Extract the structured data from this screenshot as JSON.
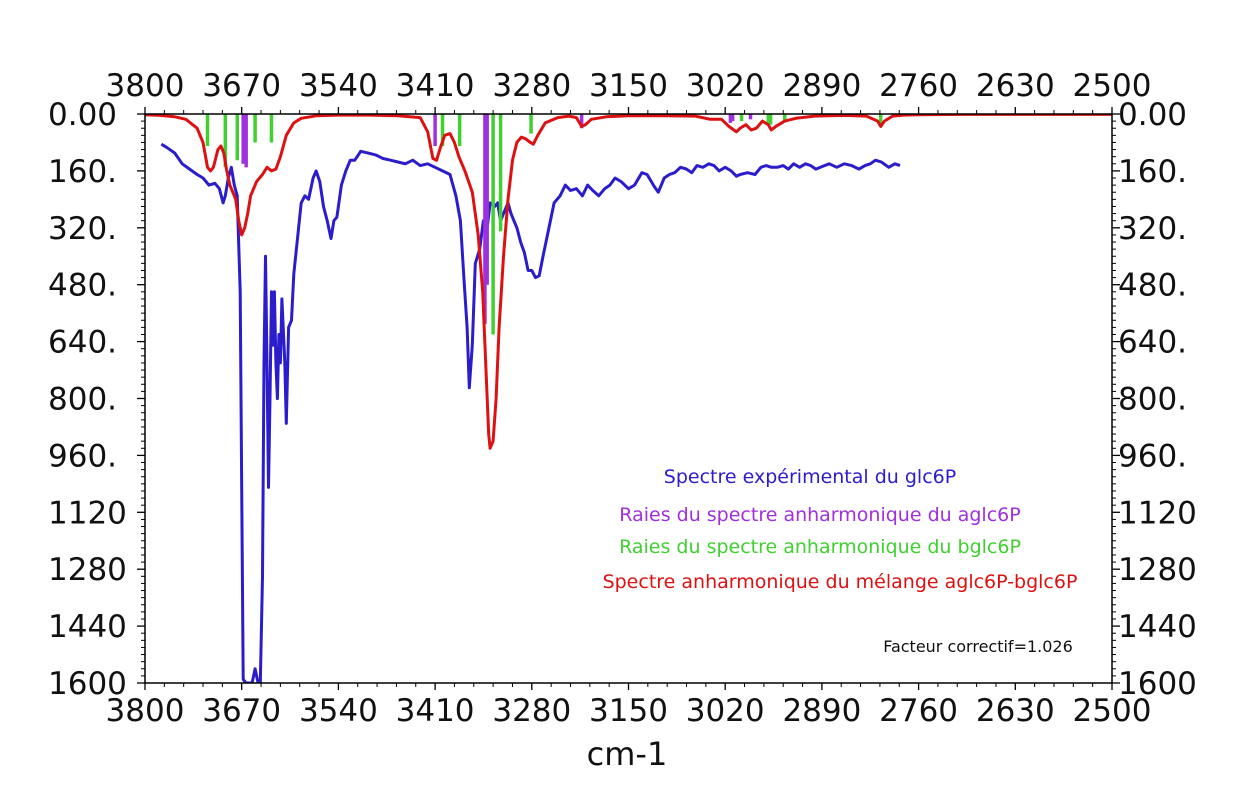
{
  "chart_data": {
    "type": "line",
    "xlabel": "cm-1",
    "x_ticks": [
      "3800",
      "3670",
      "3540",
      "3410",
      "3280",
      "3150",
      "3020",
      "2890",
      "2760",
      "2630",
      "2500"
    ],
    "y_ticks": [
      "0.00",
      "160.",
      "320.",
      "480.",
      "640.",
      "800.",
      "960.",
      "1120",
      "1280",
      "1440",
      "1600"
    ],
    "xlim": [
      3800,
      2500
    ],
    "ylim": [
      0,
      1600
    ],
    "y_inverted": true,
    "grid": false,
    "legend_position": "lower-right",
    "annotation": "Facteur correctif=1.026",
    "series": [
      {
        "name": "Spectre expérimental du glc6P",
        "kind": "line",
        "color": "#2b1ccc",
        "points": [
          [
            3778,
            85
          ],
          [
            3770,
            95
          ],
          [
            3760,
            110
          ],
          [
            3750,
            140
          ],
          [
            3740,
            155
          ],
          [
            3730,
            170
          ],
          [
            3722,
            180
          ],
          [
            3714,
            200
          ],
          [
            3706,
            195
          ],
          [
            3700,
            210
          ],
          [
            3695,
            250
          ],
          [
            3692,
            230
          ],
          [
            3688,
            180
          ],
          [
            3684,
            150
          ],
          [
            3680,
            200
          ],
          [
            3676,
            230
          ],
          [
            3672,
            500
          ],
          [
            3670,
            1050
          ],
          [
            3668,
            1590
          ],
          [
            3664,
            1600
          ],
          [
            3660,
            1600
          ],
          [
            3656,
            1600
          ],
          [
            3652,
            1560
          ],
          [
            3648,
            1600
          ],
          [
            3645,
            1600
          ],
          [
            3642,
            1300
          ],
          [
            3640,
            700
          ],
          [
            3638,
            400
          ],
          [
            3636,
            700
          ],
          [
            3634,
            1050
          ],
          [
            3632,
            800
          ],
          [
            3630,
            500
          ],
          [
            3628,
            650
          ],
          [
            3626,
            500
          ],
          [
            3624,
            700
          ],
          [
            3622,
            800
          ],
          [
            3620,
            620
          ],
          [
            3618,
            700
          ],
          [
            3616,
            520
          ],
          [
            3612,
            700
          ],
          [
            3610,
            870
          ],
          [
            3607,
            600
          ],
          [
            3603,
            580
          ],
          [
            3600,
            450
          ],
          [
            3595,
            350
          ],
          [
            3590,
            250
          ],
          [
            3585,
            230
          ],
          [
            3580,
            240
          ],
          [
            3574,
            180
          ],
          [
            3570,
            160
          ],
          [
            3565,
            190
          ],
          [
            3560,
            260
          ],
          [
            3555,
            300
          ],
          [
            3550,
            350
          ],
          [
            3546,
            300
          ],
          [
            3542,
            290
          ],
          [
            3536,
            200
          ],
          [
            3530,
            160
          ],
          [
            3524,
            130
          ],
          [
            3518,
            130
          ],
          [
            3510,
            105
          ],
          [
            3500,
            110
          ],
          [
            3490,
            115
          ],
          [
            3480,
            125
          ],
          [
            3470,
            130
          ],
          [
            3460,
            135
          ],
          [
            3450,
            140
          ],
          [
            3440,
            130
          ],
          [
            3430,
            145
          ],
          [
            3420,
            140
          ],
          [
            3410,
            150
          ],
          [
            3400,
            160
          ],
          [
            3390,
            170
          ],
          [
            3382,
            230
          ],
          [
            3376,
            300
          ],
          [
            3371,
            470
          ],
          [
            3367,
            600
          ],
          [
            3364,
            770
          ],
          [
            3360,
            650
          ],
          [
            3356,
            420
          ],
          [
            3350,
            380
          ],
          [
            3345,
            300
          ],
          [
            3340,
            320
          ],
          [
            3336,
            250
          ],
          [
            3330,
            260
          ],
          [
            3326,
            250
          ],
          [
            3322,
            300
          ],
          [
            3318,
            280
          ],
          [
            3312,
            250
          ],
          [
            3308,
            280
          ],
          [
            3304,
            300
          ],
          [
            3300,
            320
          ],
          [
            3295,
            360
          ],
          [
            3290,
            390
          ],
          [
            3285,
            440
          ],
          [
            3280,
            440
          ],
          [
            3275,
            460
          ],
          [
            3270,
            455
          ],
          [
            3265,
            400
          ],
          [
            3258,
            330
          ],
          [
            3250,
            250
          ],
          [
            3242,
            230
          ],
          [
            3235,
            200
          ],
          [
            3228,
            215
          ],
          [
            3220,
            210
          ],
          [
            3212,
            230
          ],
          [
            3205,
            200
          ],
          [
            3198,
            215
          ],
          [
            3190,
            230
          ],
          [
            3182,
            210
          ],
          [
            3175,
            200
          ],
          [
            3168,
            180
          ],
          [
            3160,
            190
          ],
          [
            3150,
            210
          ],
          [
            3142,
            200
          ],
          [
            3132,
            165
          ],
          [
            3125,
            170
          ],
          [
            3115,
            205
          ],
          [
            3110,
            220
          ],
          [
            3102,
            180
          ],
          [
            3095,
            170
          ],
          [
            3088,
            165
          ],
          [
            3080,
            150
          ],
          [
            3072,
            155
          ],
          [
            3065,
            165
          ],
          [
            3058,
            145
          ],
          [
            3050,
            150
          ],
          [
            3042,
            140
          ],
          [
            3035,
            145
          ],
          [
            3028,
            160
          ],
          [
            3020,
            150
          ],
          [
            3012,
            160
          ],
          [
            3005,
            175
          ],
          [
            3000,
            170
          ],
          [
            2990,
            165
          ],
          [
            2980,
            170
          ],
          [
            2972,
            150
          ],
          [
            2965,
            145
          ],
          [
            2958,
            150
          ],
          [
            2950,
            150
          ],
          [
            2942,
            145
          ],
          [
            2935,
            155
          ],
          [
            2928,
            140
          ],
          [
            2920,
            150
          ],
          [
            2912,
            140
          ],
          [
            2905,
            145
          ],
          [
            2898,
            155
          ],
          [
            2890,
            148
          ],
          [
            2880,
            140
          ],
          [
            2870,
            150
          ],
          [
            2860,
            140
          ],
          [
            2850,
            145
          ],
          [
            2840,
            155
          ],
          [
            2832,
            145
          ],
          [
            2825,
            140
          ],
          [
            2818,
            130
          ],
          [
            2810,
            135
          ],
          [
            2800,
            150
          ],
          [
            2792,
            140
          ],
          [
            2785,
            145
          ]
        ]
      },
      {
        "name": "Raies du spectre anharmonique du aglc6P",
        "kind": "sticks",
        "color": "#a030dd",
        "sticks": [
          [
            3668,
            140
          ],
          [
            3664,
            150
          ],
          [
            3410,
            90
          ],
          [
            3343,
            590
          ],
          [
            3340,
            480
          ],
          [
            3213,
            40
          ],
          [
            3013,
            25
          ],
          [
            3010,
            20
          ],
          [
            2986,
            15
          ]
        ]
      },
      {
        "name": "Raies du spectre anharmonique du bglc6P",
        "kind": "sticks",
        "color": "#40d030",
        "sticks": [
          [
            3716,
            90
          ],
          [
            3692,
            150
          ],
          [
            3676,
            130
          ],
          [
            3652,
            80
          ],
          [
            3630,
            80
          ],
          [
            3400,
            90
          ],
          [
            3377,
            90
          ],
          [
            3332,
            620
          ],
          [
            3322,
            330
          ],
          [
            3281,
            55
          ],
          [
            2998,
            20
          ],
          [
            2962,
            25
          ],
          [
            2959,
            30
          ],
          [
            2940,
            20
          ],
          [
            2811,
            35
          ]
        ]
      },
      {
        "name": "Spectre anharmonique du mélange aglc6P-bglc6P",
        "kind": "line",
        "color": "#dd1111",
        "points": [
          [
            3800,
            2
          ],
          [
            3780,
            4
          ],
          [
            3760,
            8
          ],
          [
            3745,
            15
          ],
          [
            3730,
            40
          ],
          [
            3722,
            80
          ],
          [
            3716,
            150
          ],
          [
            3712,
            160
          ],
          [
            3708,
            150
          ],
          [
            3702,
            100
          ],
          [
            3698,
            90
          ],
          [
            3694,
            110
          ],
          [
            3690,
            160
          ],
          [
            3686,
            200
          ],
          [
            3682,
            220
          ],
          [
            3678,
            240
          ],
          [
            3674,
            300
          ],
          [
            3670,
            340
          ],
          [
            3666,
            320
          ],
          [
            3662,
            280
          ],
          [
            3658,
            230
          ],
          [
            3650,
            190
          ],
          [
            3642,
            170
          ],
          [
            3636,
            150
          ],
          [
            3630,
            160
          ],
          [
            3624,
            155
          ],
          [
            3618,
            120
          ],
          [
            3610,
            60
          ],
          [
            3600,
            25
          ],
          [
            3590,
            12
          ],
          [
            3570,
            5
          ],
          [
            3540,
            3
          ],
          [
            3500,
            3
          ],
          [
            3460,
            5
          ],
          [
            3430,
            10
          ],
          [
            3420,
            50
          ],
          [
            3413,
            125
          ],
          [
            3408,
            130
          ],
          [
            3403,
            95
          ],
          [
            3397,
            60
          ],
          [
            3390,
            55
          ],
          [
            3384,
            80
          ],
          [
            3378,
            120
          ],
          [
            3370,
            160
          ],
          [
            3360,
            220
          ],
          [
            3352,
            340
          ],
          [
            3346,
            500
          ],
          [
            3342,
            700
          ],
          [
            3338,
            900
          ],
          [
            3336,
            940
          ],
          [
            3332,
            920
          ],
          [
            3328,
            800
          ],
          [
            3324,
            600
          ],
          [
            3318,
            400
          ],
          [
            3312,
            240
          ],
          [
            3306,
            130
          ],
          [
            3300,
            80
          ],
          [
            3294,
            65
          ],
          [
            3288,
            70
          ],
          [
            3282,
            80
          ],
          [
            3278,
            85
          ],
          [
            3272,
            60
          ],
          [
            3262,
            25
          ],
          [
            3245,
            10
          ],
          [
            3230,
            6
          ],
          [
            3220,
            10
          ],
          [
            3213,
            35
          ],
          [
            3208,
            30
          ],
          [
            3200,
            15
          ],
          [
            3180,
            8
          ],
          [
            3150,
            5
          ],
          [
            3100,
            5
          ],
          [
            3060,
            6
          ],
          [
            3040,
            15
          ],
          [
            3025,
            15
          ],
          [
            3015,
            35
          ],
          [
            3005,
            50
          ],
          [
            3000,
            40
          ],
          [
            2992,
            30
          ],
          [
            2985,
            45
          ],
          [
            2978,
            40
          ],
          [
            2970,
            20
          ],
          [
            2962,
            30
          ],
          [
            2958,
            45
          ],
          [
            2952,
            35
          ],
          [
            2940,
            20
          ],
          [
            2925,
            12
          ],
          [
            2900,
            6
          ],
          [
            2860,
            4
          ],
          [
            2830,
            6
          ],
          [
            2815,
            20
          ],
          [
            2811,
            35
          ],
          [
            2806,
            20
          ],
          [
            2795,
            6
          ],
          [
            2780,
            3
          ],
          [
            2760,
            2
          ],
          [
            2700,
            1
          ],
          [
            2600,
            1
          ],
          [
            2500,
            1
          ]
        ]
      }
    ]
  }
}
